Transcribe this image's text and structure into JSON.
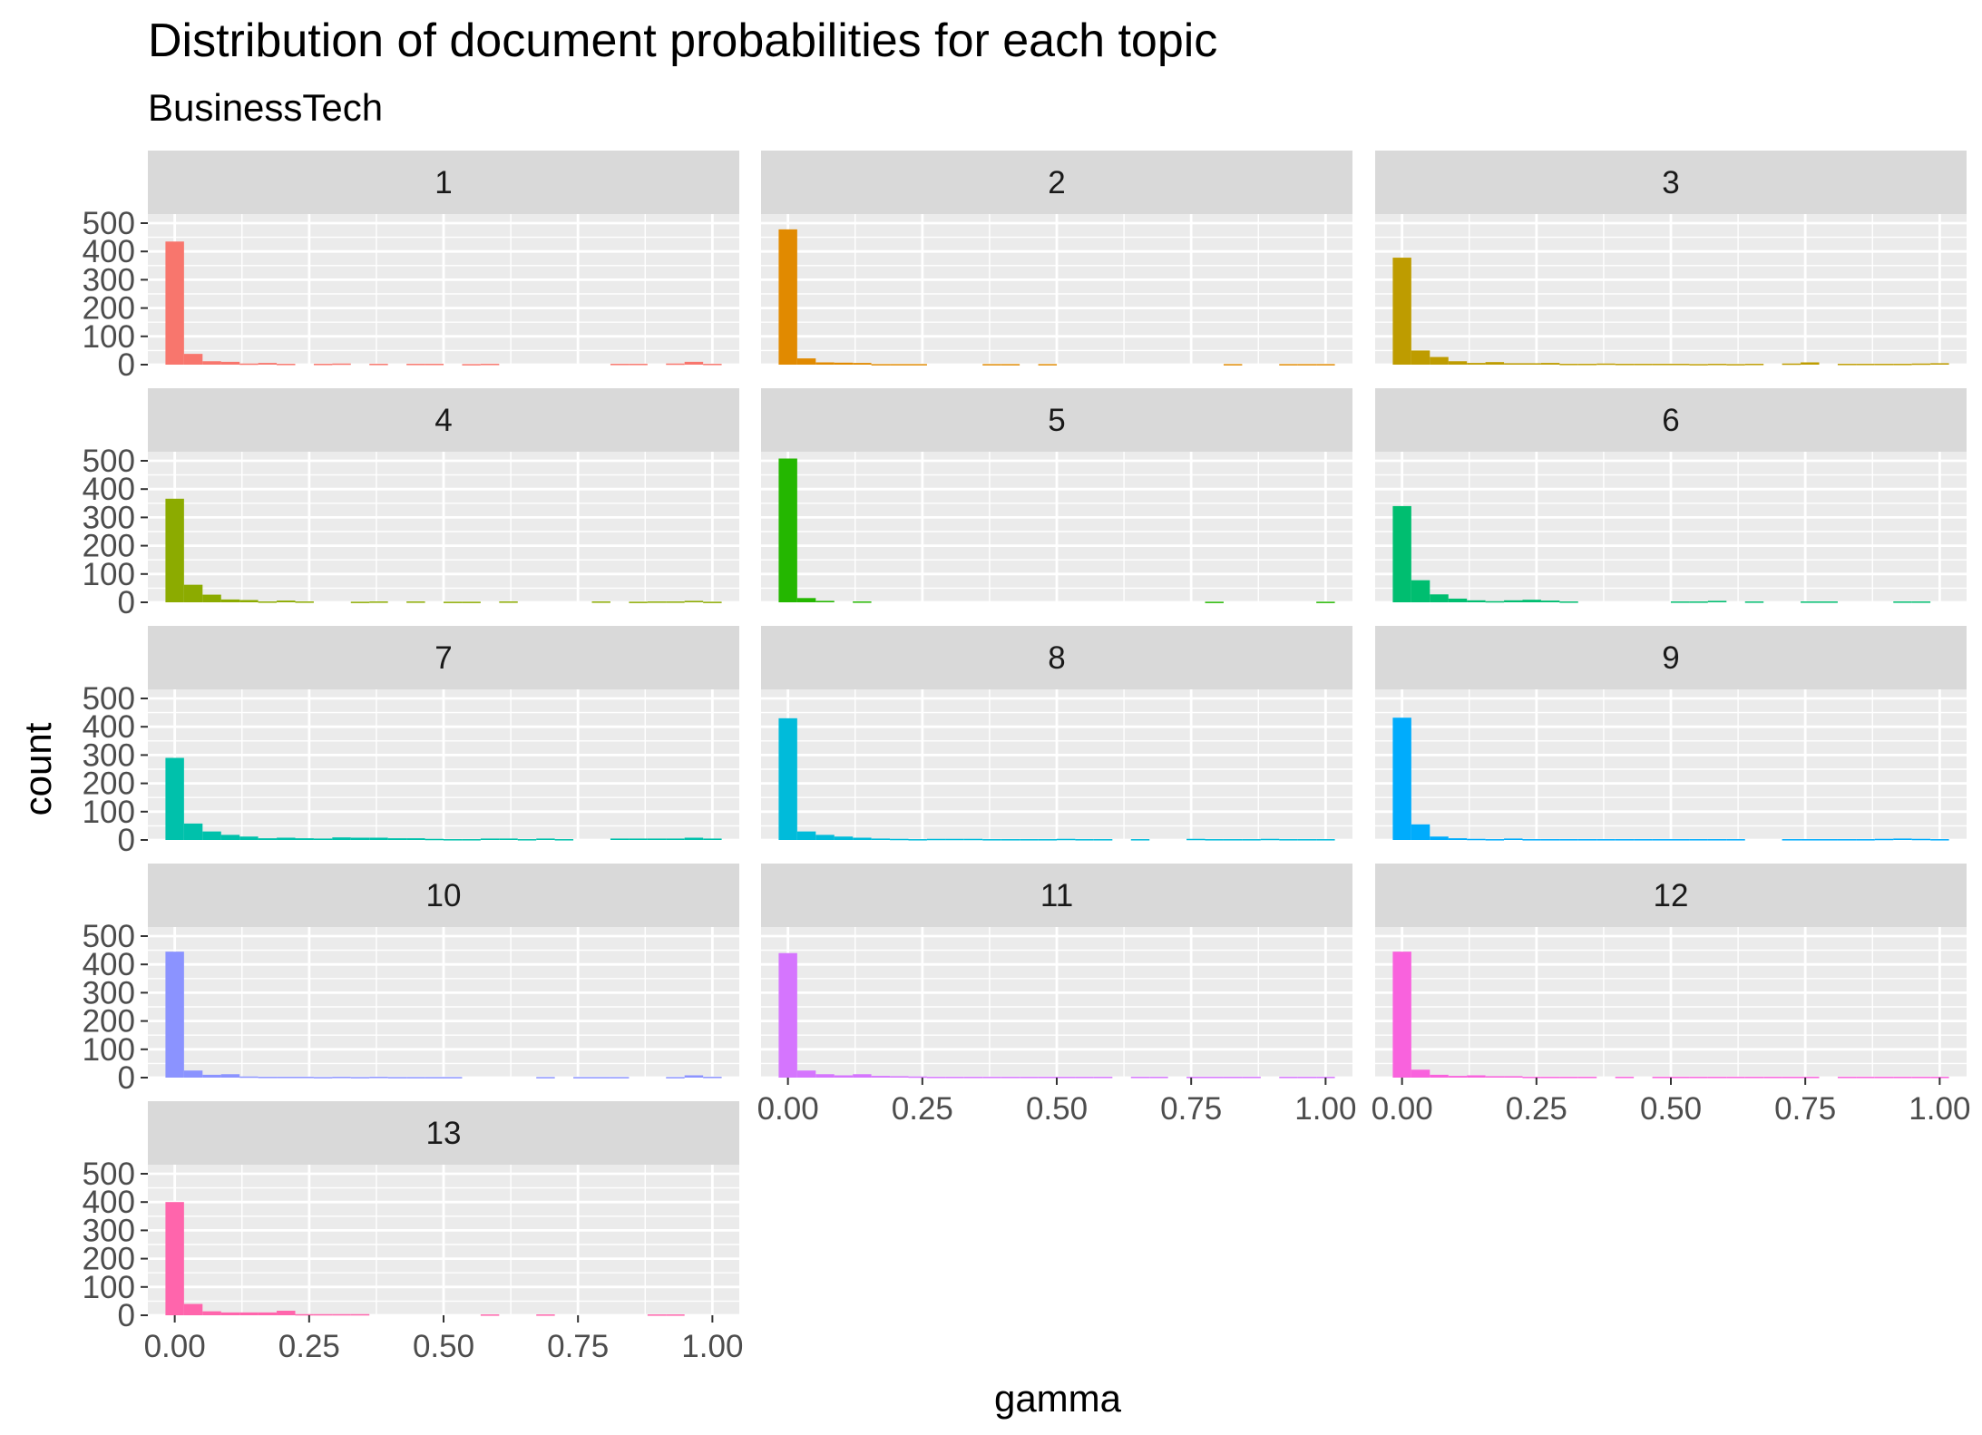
{
  "chart_data": {
    "type": "bar",
    "title": "Distribution of document probabilities for each topic",
    "subtitle": "BusinessTech",
    "xlabel": "gamma",
    "ylabel": "count",
    "xlim": [
      -0.05,
      1.05
    ],
    "ylim": [
      0,
      500
    ],
    "x_ticks": [
      "0.00",
      "0.25",
      "0.50",
      "0.75",
      "1.00"
    ],
    "y_ticks": [
      "0",
      "100",
      "200",
      "300",
      "400",
      "500"
    ],
    "bin_width": 0.0345,
    "bin_centers": [
      0.0,
      0.0345,
      0.069,
      0.1034,
      0.1379,
      0.1724,
      0.2069,
      0.2414,
      0.2759,
      0.3103,
      0.3448,
      0.3793,
      0.4138,
      0.4483,
      0.4828,
      0.5172,
      0.5517,
      0.5862,
      0.6207,
      0.6552,
      0.6897,
      0.7241,
      0.7586,
      0.7931,
      0.8276,
      0.8621,
      0.8966,
      0.931,
      0.9655,
      1.0
    ],
    "grid": true,
    "legend": "none",
    "layout": {
      "columns": 3,
      "rows": 5
    },
    "panels": [
      {
        "label": "1",
        "color": "#F8766D",
        "values": [
          435,
          38,
          12,
          10,
          4,
          6,
          3,
          0,
          3,
          4,
          0,
          3,
          0,
          3,
          3,
          0,
          2,
          3,
          0,
          0,
          0,
          0,
          0,
          0,
          3,
          3,
          0,
          4,
          10,
          3
        ]
      },
      {
        "label": "2",
        "color": "#E18A00",
        "values": [
          478,
          22,
          8,
          7,
          6,
          2,
          2,
          2,
          0,
          0,
          0,
          2,
          2,
          0,
          2,
          0,
          0,
          0,
          0,
          0,
          0,
          0,
          0,
          0,
          2,
          0,
          0,
          2,
          2,
          2
        ]
      },
      {
        "label": "3",
        "color": "#BE9C00",
        "values": [
          378,
          50,
          27,
          12,
          6,
          9,
          5,
          5,
          6,
          3,
          3,
          4,
          3,
          3,
          3,
          3,
          2,
          3,
          2,
          3,
          0,
          4,
          8,
          0,
          3,
          3,
          3,
          3,
          4,
          5
        ]
      },
      {
        "label": "4",
        "color": "#8CAB00",
        "values": [
          366,
          62,
          27,
          10,
          8,
          3,
          6,
          3,
          0,
          0,
          2,
          3,
          0,
          3,
          0,
          2,
          2,
          0,
          3,
          0,
          0,
          0,
          0,
          3,
          0,
          2,
          3,
          3,
          5,
          2
        ]
      },
      {
        "label": "5",
        "color": "#24B700",
        "values": [
          508,
          15,
          5,
          0,
          3,
          0,
          0,
          0,
          0,
          0,
          0,
          0,
          0,
          0,
          0,
          0,
          0,
          0,
          0,
          0,
          0,
          0,
          0,
          2,
          0,
          0,
          0,
          0,
          0,
          2
        ]
      },
      {
        "label": "6",
        "color": "#00BE70",
        "values": [
          340,
          78,
          28,
          13,
          7,
          4,
          7,
          9,
          6,
          3,
          0,
          0,
          0,
          0,
          0,
          3,
          3,
          5,
          0,
          3,
          0,
          0,
          3,
          3,
          0,
          0,
          0,
          3,
          3,
          0
        ]
      },
      {
        "label": "7",
        "color": "#00C1AB",
        "values": [
          290,
          58,
          30,
          18,
          12,
          6,
          8,
          6,
          5,
          9,
          8,
          8,
          6,
          6,
          4,
          3,
          3,
          5,
          5,
          3,
          5,
          3,
          0,
          0,
          5,
          5,
          5,
          5,
          8,
          5
        ]
      },
      {
        "label": "8",
        "color": "#00BBDA",
        "values": [
          430,
          30,
          18,
          12,
          8,
          5,
          4,
          3,
          4,
          4,
          4,
          3,
          3,
          3,
          3,
          4,
          3,
          3,
          0,
          3,
          0,
          0,
          4,
          3,
          3,
          3,
          4,
          3,
          3,
          3
        ]
      },
      {
        "label": "9",
        "color": "#00ACFC",
        "values": [
          432,
          55,
          12,
          6,
          4,
          3,
          5,
          3,
          3,
          3,
          3,
          3,
          3,
          3,
          3,
          3,
          3,
          3,
          3,
          0,
          0,
          3,
          3,
          3,
          3,
          3,
          4,
          5,
          4,
          3
        ]
      },
      {
        "label": "10",
        "color": "#8B93FF",
        "values": [
          445,
          25,
          10,
          12,
          4,
          3,
          3,
          3,
          2,
          3,
          2,
          3,
          2,
          2,
          2,
          2,
          0,
          0,
          0,
          0,
          2,
          0,
          2,
          2,
          2,
          0,
          0,
          2,
          8,
          3
        ]
      },
      {
        "label": "11",
        "color": "#D575FE",
        "values": [
          440,
          25,
          12,
          8,
          12,
          6,
          5,
          4,
          3,
          3,
          3,
          3,
          3,
          3,
          3,
          3,
          3,
          3,
          0,
          3,
          3,
          0,
          3,
          3,
          3,
          3,
          0,
          3,
          3,
          3
        ]
      },
      {
        "label": "12",
        "color": "#F962DD",
        "values": [
          445,
          28,
          10,
          6,
          8,
          5,
          5,
          3,
          3,
          3,
          3,
          0,
          3,
          0,
          3,
          3,
          3,
          3,
          3,
          3,
          3,
          3,
          3,
          0,
          3,
          3,
          3,
          3,
          3,
          3
        ]
      },
      {
        "label": "13",
        "color": "#FF65AC",
        "values": [
          400,
          40,
          14,
          10,
          10,
          10,
          16,
          4,
          4,
          4,
          4,
          0,
          0,
          0,
          0,
          0,
          0,
          3,
          0,
          0,
          3,
          0,
          0,
          0,
          0,
          0,
          3,
          3,
          0,
          0
        ]
      }
    ]
  }
}
